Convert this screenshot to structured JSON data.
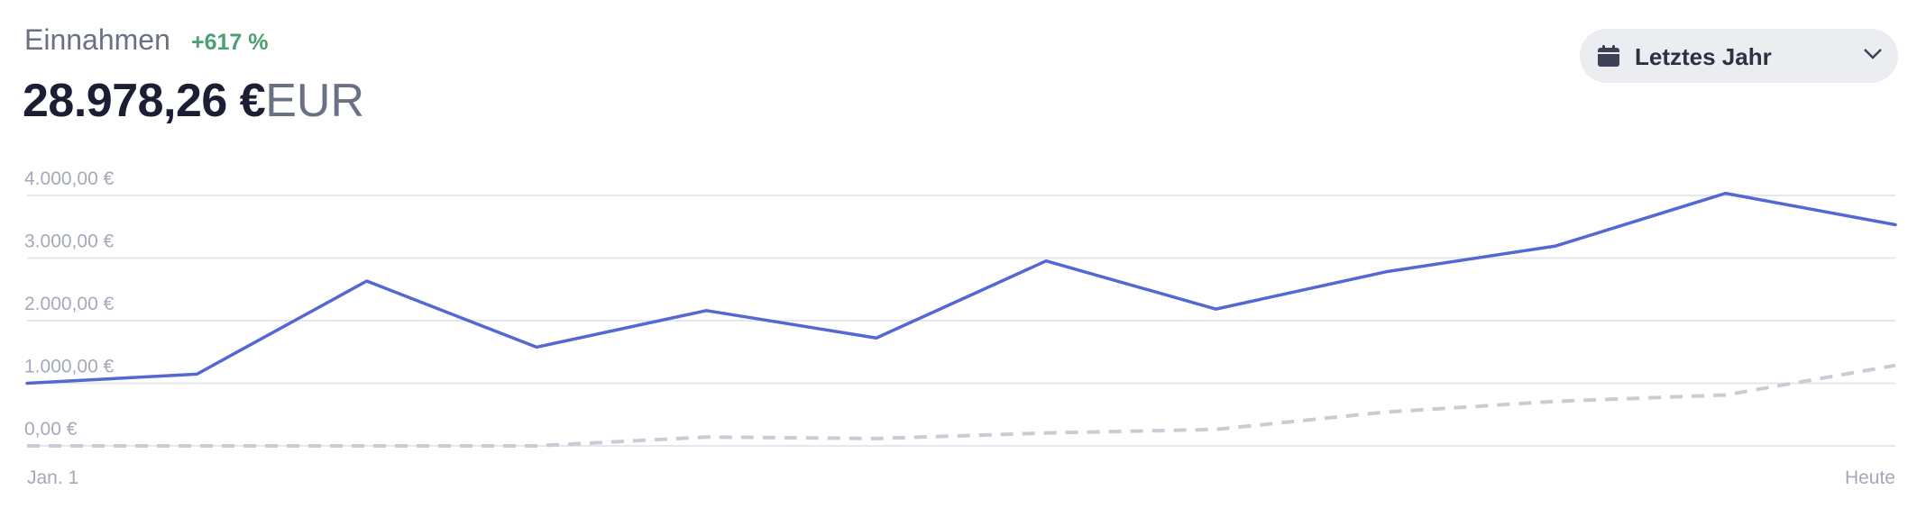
{
  "header": {
    "title": "Einnahmen",
    "change": "+617 %",
    "amount": "28.978,26 €",
    "currency": "EUR"
  },
  "range_select": {
    "icon": "calendar-icon",
    "label": "Letztes Jahr",
    "chevron": "chevron-down-icon"
  },
  "colors": {
    "current": "#5468d4",
    "previous": "#c8ccd4",
    "grid": "#e5e7eb",
    "positive": "#4aa070"
  },
  "chart_data": {
    "type": "line",
    "x_labels": [
      "Jan. 1",
      "Heute"
    ],
    "y_ticks": [
      "0,00 €",
      "1.000,00 €",
      "2.000,00 €",
      "3.000,00 €",
      "4.000,00 €"
    ],
    "ylim": [
      0,
      4000
    ],
    "grid": true,
    "series": [
      {
        "style": "solid",
        "values": [
          1000,
          1146,
          2633,
          1577,
          2161,
          1723,
          2954,
          2185,
          2780,
          3193,
          4034,
          3532
        ]
      },
      {
        "style": "dashed",
        "values": [
          0,
          0,
          0,
          0,
          141,
          117,
          205,
          263,
          540,
          711,
          813,
          1285
        ]
      }
    ]
  }
}
